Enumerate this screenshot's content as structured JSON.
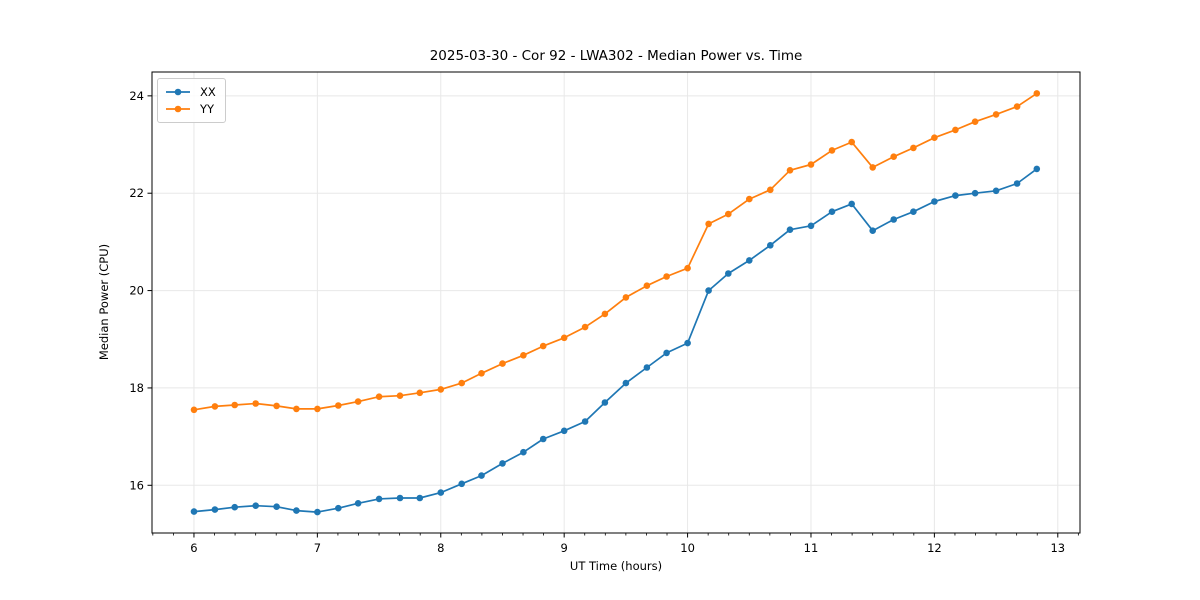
{
  "chart_data": {
    "type": "line",
    "title": "2025-03-30 - Cor 92 - LWA302 - Median Power vs. Time",
    "xlabel": "UT Time (hours)",
    "ylabel": "Median Power (CPU)",
    "legend_position": "upper left",
    "grid": true,
    "xlim": [
      5.66,
      13.18
    ],
    "ylim": [
      15.02,
      24.49
    ],
    "xticks": [
      6,
      7,
      8,
      9,
      10,
      11,
      12,
      13
    ],
    "yticks": [
      16,
      18,
      20,
      22,
      24
    ],
    "x_minor_step": 0.1667,
    "x": [
      6.0,
      6.17,
      6.33,
      6.5,
      6.67,
      6.83,
      7.0,
      7.17,
      7.33,
      7.5,
      7.67,
      7.83,
      8.0,
      8.17,
      8.33,
      8.5,
      8.67,
      8.83,
      9.0,
      9.17,
      9.33,
      9.5,
      9.67,
      9.83,
      10.0,
      10.17,
      10.33,
      10.5,
      10.67,
      10.83,
      11.0,
      11.17,
      11.33,
      11.5,
      11.67,
      11.83,
      12.0,
      12.17,
      12.33,
      12.5,
      12.67,
      12.83
    ],
    "series": [
      {
        "name": "XX",
        "color": "#1f77b4",
        "values": [
          15.46,
          15.5,
          15.55,
          15.58,
          15.56,
          15.48,
          15.45,
          15.53,
          15.63,
          15.72,
          15.74,
          15.74,
          15.85,
          16.03,
          16.2,
          16.45,
          16.68,
          16.95,
          17.12,
          17.31,
          17.7,
          18.1,
          18.42,
          18.72,
          18.92,
          20.0,
          20.35,
          20.62,
          20.93,
          21.25,
          21.33,
          21.62,
          21.78,
          21.23,
          21.46,
          21.62,
          21.83,
          21.95,
          22.0,
          22.05,
          22.2,
          22.5
        ]
      },
      {
        "name": "YY",
        "color": "#ff7f0e",
        "values": [
          17.55,
          17.62,
          17.65,
          17.68,
          17.63,
          17.57,
          17.57,
          17.64,
          17.72,
          17.82,
          17.84,
          17.9,
          17.97,
          18.1,
          18.3,
          18.5,
          18.67,
          18.86,
          19.03,
          19.25,
          19.52,
          19.86,
          20.1,
          20.29,
          20.46,
          21.37,
          21.57,
          21.88,
          22.07,
          22.47,
          22.59,
          22.88,
          23.05,
          22.53,
          22.75,
          22.93,
          23.14,
          23.3,
          23.47,
          23.62,
          23.78,
          24.05
        ]
      }
    ],
    "colors": {
      "grid": "#e8e8e8",
      "spine": "#000000",
      "background": "#ffffff"
    }
  }
}
